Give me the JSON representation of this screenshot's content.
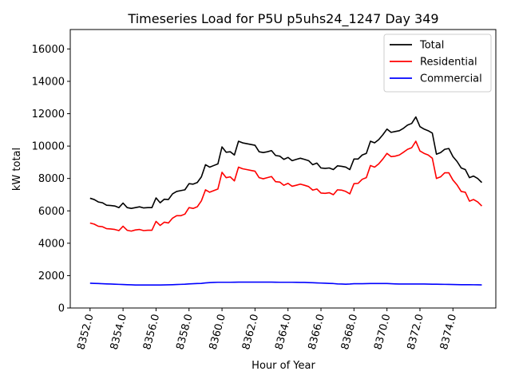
{
  "chart_data": {
    "type": "line",
    "title": "Timeseries Load for P5U p5uhs24_1247  Day 349",
    "xlabel": "Hour of Year",
    "ylabel": "kW total",
    "xlim": [
      8350.8,
      8376.6
    ],
    "ylim": [
      0,
      17200
    ],
    "x_ticks": [
      8352,
      8354,
      8356,
      8358,
      8360,
      8362,
      8364,
      8366,
      8368,
      8370,
      8372,
      8374
    ],
    "x_tick_labels": [
      "8352.0",
      "8354.0",
      "8356.0",
      "8358.0",
      "8360.0",
      "8362.0",
      "8364.0",
      "8366.0",
      "8368.0",
      "8370.0",
      "8372.0",
      "8374.0"
    ],
    "y_ticks": [
      0,
      2000,
      4000,
      6000,
      8000,
      10000,
      12000,
      14000,
      16000
    ],
    "y_tick_labels": [
      "0",
      "2000",
      "4000",
      "6000",
      "8000",
      "10000",
      "12000",
      "14000",
      "16000"
    ],
    "legend_position": "top-right",
    "x_start": 8352,
    "x_step": 0.25,
    "series": [
      {
        "name": "Total",
        "color": "#000000",
        "values": [
          6780,
          6700,
          6550,
          6500,
          6350,
          6330,
          6300,
          6200,
          6480,
          6200,
          6150,
          6200,
          6250,
          6180,
          6200,
          6200,
          6800,
          6500,
          6720,
          6700,
          7050,
          7200,
          7250,
          7300,
          7680,
          7650,
          7750,
          8100,
          8850,
          8700,
          8800,
          8900,
          9950,
          9620,
          9650,
          9450,
          10300,
          10200,
          10150,
          10100,
          10050,
          9650,
          9600,
          9650,
          9720,
          9420,
          9380,
          9180,
          9300,
          9100,
          9180,
          9250,
          9180,
          9100,
          8850,
          8950,
          8650,
          8620,
          8650,
          8550,
          8780,
          8750,
          8700,
          8550,
          9200,
          9200,
          9450,
          9550,
          10300,
          10200,
          10400,
          10700,
          11050,
          10850,
          10900,
          10950,
          11100,
          11300,
          11400,
          11800,
          11200,
          11050,
          10950,
          10800,
          9500,
          9600,
          9800,
          9850,
          9350,
          9050,
          8650,
          8550,
          8050,
          8150,
          8000,
          7750
        ]
      },
      {
        "name": "Residential",
        "color": "#ff0000",
        "values": [
          5250,
          5180,
          5050,
          5020,
          4900,
          4880,
          4850,
          4780,
          5050,
          4800,
          4750,
          4820,
          4850,
          4780,
          4800,
          4800,
          5350,
          5100,
          5300,
          5250,
          5550,
          5700,
          5700,
          5800,
          6200,
          6150,
          6250,
          6620,
          7300,
          7150,
          7250,
          7350,
          8380,
          8050,
          8100,
          7850,
          8700,
          8600,
          8550,
          8500,
          8450,
          8050,
          7980,
          8050,
          8120,
          7800,
          7780,
          7580,
          7700,
          7520,
          7580,
          7650,
          7580,
          7500,
          7280,
          7350,
          7100,
          7080,
          7120,
          7000,
          7300,
          7280,
          7200,
          7050,
          7680,
          7700,
          7950,
          8050,
          8800,
          8700,
          8900,
          9200,
          9550,
          9350,
          9380,
          9450,
          9620,
          9800,
          9900,
          10300,
          9700,
          9550,
          9450,
          9250,
          8000,
          8100,
          8350,
          8350,
          7900,
          7600,
          7200,
          7150,
          6600,
          6700,
          6550,
          6300
        ]
      },
      {
        "name": "Commercial",
        "color": "#0000ff",
        "values": [
          1530,
          1520,
          1510,
          1500,
          1490,
          1480,
          1470,
          1460,
          1450,
          1440,
          1430,
          1420,
          1420,
          1420,
          1420,
          1420,
          1420,
          1420,
          1425,
          1430,
          1440,
          1450,
          1460,
          1470,
          1490,
          1500,
          1510,
          1520,
          1550,
          1570,
          1580,
          1590,
          1590,
          1590,
          1590,
          1595,
          1600,
          1600,
          1600,
          1600,
          1600,
          1600,
          1600,
          1600,
          1600,
          1595,
          1590,
          1590,
          1590,
          1590,
          1585,
          1580,
          1580,
          1570,
          1560,
          1550,
          1540,
          1530,
          1520,
          1510,
          1490,
          1480,
          1470,
          1480,
          1500,
          1500,
          1500,
          1505,
          1510,
          1510,
          1510,
          1515,
          1510,
          1500,
          1490,
          1480,
          1480,
          1480,
          1480,
          1480,
          1480,
          1480,
          1475,
          1470,
          1470,
          1465,
          1460,
          1455,
          1450,
          1445,
          1440,
          1440,
          1440,
          1435,
          1430,
          1425
        ]
      }
    ]
  }
}
